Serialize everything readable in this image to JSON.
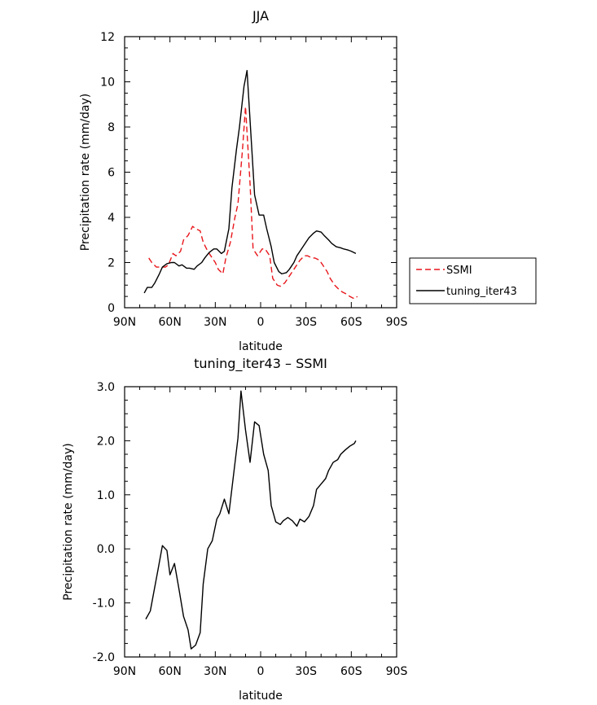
{
  "chart_data": [
    {
      "type": "line",
      "title": "JJA",
      "xlabel": "latitude",
      "ylabel": "Precipitation rate (mm/day)",
      "xlim": [
        90,
        -90
      ],
      "ylim": [
        0,
        12
      ],
      "x_ticks": [
        90,
        60,
        30,
        0,
        -30,
        -60,
        -90
      ],
      "x_tick_labels": [
        "90N",
        "60N",
        "30N",
        "0",
        "30S",
        "60S",
        "90S"
      ],
      "y_ticks": [
        0,
        2,
        4,
        6,
        8,
        10,
        12
      ],
      "y_tick_labels": [
        "0",
        "2",
        "4",
        "6",
        "8",
        "10",
        "12"
      ],
      "legend_position": "right",
      "series": [
        {
          "name": "SSMI",
          "color": "#e8161b",
          "dash": true,
          "x": [
            74,
            72,
            69,
            66,
            63,
            61,
            58,
            56,
            53,
            51,
            48,
            45,
            43,
            40,
            38,
            35,
            33,
            30,
            28,
            25,
            23,
            20,
            17,
            15,
            12,
            10,
            7,
            5,
            2,
            -1,
            -3,
            -6,
            -8,
            -11,
            -13,
            -16,
            -18,
            -21,
            -23,
            -26,
            -29,
            -31,
            -34,
            -36,
            -39,
            -41,
            -44,
            -46,
            -49,
            -52,
            -54,
            -57,
            -59,
            -62,
            -64
          ],
          "values": [
            2.2,
            2.0,
            1.8,
            1.8,
            1.8,
            1.9,
            2.4,
            2.3,
            2.5,
            3.0,
            3.2,
            3.6,
            3.5,
            3.4,
            2.9,
            2.5,
            2.3,
            2.0,
            1.7,
            1.5,
            2.2,
            2.9,
            4.0,
            4.6,
            7.0,
            8.9,
            5.5,
            2.6,
            2.3,
            2.6,
            2.6,
            2.3,
            1.3,
            1.0,
            0.95,
            1.1,
            1.3,
            1.6,
            1.8,
            2.1,
            2.3,
            2.3,
            2.2,
            2.2,
            2.1,
            1.9,
            1.6,
            1.3,
            1.0,
            0.8,
            0.7,
            0.6,
            0.5,
            0.4,
            0.5
          ]
        },
        {
          "name": "tuning_iter43",
          "color": "#000000",
          "dash": false,
          "x": [
            77,
            75,
            72,
            70,
            67,
            65,
            62,
            59,
            57,
            54,
            52,
            49,
            47,
            44,
            42,
            39,
            37,
            34,
            31,
            29,
            26,
            24,
            21,
            19,
            16,
            14,
            11,
            9,
            6,
            4,
            1,
            -2,
            -4,
            -7,
            -9,
            -12,
            -14,
            -17,
            -19,
            -22,
            -24,
            -27,
            -30,
            -32,
            -35,
            -37,
            -40,
            -42,
            -45,
            -47,
            -50,
            -53,
            -55,
            -58,
            -60,
            -63
          ],
          "values": [
            0.65,
            0.9,
            0.9,
            1.1,
            1.5,
            1.8,
            1.95,
            2.0,
            2.0,
            1.85,
            1.9,
            1.75,
            1.75,
            1.7,
            1.85,
            2.0,
            2.2,
            2.45,
            2.6,
            2.6,
            2.4,
            2.5,
            3.5,
            5.3,
            7.0,
            8.0,
            9.8,
            10.5,
            7.2,
            5.0,
            4.1,
            4.1,
            3.5,
            2.7,
            2.0,
            1.6,
            1.5,
            1.55,
            1.7,
            2.0,
            2.3,
            2.6,
            2.9,
            3.1,
            3.3,
            3.4,
            3.35,
            3.2,
            3.0,
            2.85,
            2.7,
            2.65,
            2.6,
            2.55,
            2.5,
            2.4
          ]
        }
      ]
    },
    {
      "type": "line",
      "title": "tuning_iter43 – SSMI",
      "xlabel": "latitude",
      "ylabel": "Precipitation rate (mm/day)",
      "xlim": [
        90,
        -90
      ],
      "ylim": [
        -2.0,
        3.0
      ],
      "x_ticks": [
        90,
        60,
        30,
        0,
        -30,
        -60,
        -90
      ],
      "x_tick_labels": [
        "90N",
        "60N",
        "30N",
        "0",
        "30S",
        "60S",
        "90S"
      ],
      "y_ticks": [
        -2,
        -1,
        0,
        1,
        2,
        3
      ],
      "y_tick_labels": [
        "-2.0",
        "-1.0",
        "0.0",
        "1.0",
        "2.0",
        "3.0"
      ],
      "series": [
        {
          "color": "#000000",
          "dash": false,
          "x": [
            76,
            73,
            70,
            68,
            65,
            62,
            60,
            57,
            54,
            51,
            48,
            46,
            43,
            40,
            38,
            35,
            32,
            29,
            27,
            24,
            21,
            18,
            15,
            13,
            10,
            7,
            4,
            1,
            -2,
            -5,
            -7,
            -10,
            -13,
            -15,
            -18,
            -21,
            -24,
            -26,
            -29,
            -32,
            -35,
            -37,
            -40,
            -43,
            -45,
            -48,
            -51,
            -53,
            -56,
            -59,
            -62,
            -63
          ],
          "values": [
            -1.3,
            -1.15,
            -0.7,
            -0.4,
            0.06,
            -0.03,
            -0.48,
            -0.27,
            -0.75,
            -1.25,
            -1.5,
            -1.85,
            -1.78,
            -1.55,
            -0.65,
            0.0,
            0.15,
            0.55,
            0.65,
            0.92,
            0.65,
            1.35,
            2.05,
            2.92,
            2.2,
            1.6,
            2.35,
            2.28,
            1.75,
            1.45,
            0.8,
            0.5,
            0.45,
            0.52,
            0.58,
            0.52,
            0.42,
            0.55,
            0.5,
            0.6,
            0.8,
            1.1,
            1.2,
            1.3,
            1.45,
            1.6,
            1.65,
            1.75,
            1.83,
            1.9,
            1.95,
            2.0
          ]
        }
      ]
    }
  ]
}
